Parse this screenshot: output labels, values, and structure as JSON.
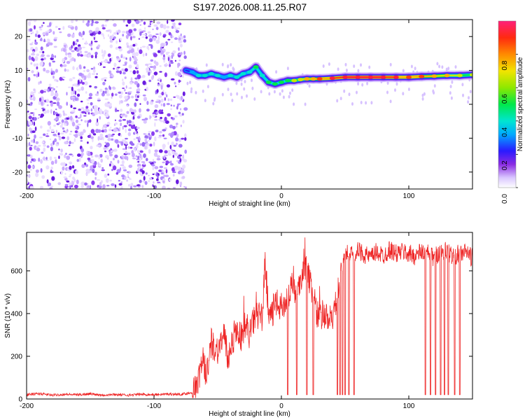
{
  "title": "S197.2026.008.11.25.R07",
  "colors": {
    "snr_line": "#ee2222",
    "background": "#ffffff",
    "noise_scatter": "#7a1fe0"
  },
  "chart_data": [
    {
      "type": "heatmap",
      "title": "S197.2026.008.11.25.R07",
      "xlabel": "Height of straight line (km)",
      "ylabel": "Frequency (Hz)",
      "xlim": [
        -200,
        150
      ],
      "ylim": [
        -25,
        25
      ],
      "xticks": [
        -200,
        -100,
        0,
        100
      ],
      "xtick_labels": [
        "-200",
        "-100",
        "0",
        "100"
      ],
      "yticks": [
        -20,
        -10,
        0,
        10,
        20
      ],
      "ytick_labels": [
        "-20",
        "-10",
        "0",
        "10",
        "20"
      ],
      "noise_region_x": [
        -200,
        -75
      ],
      "ridge": {
        "x": [
          -75,
          -70,
          -65,
          -60,
          -55,
          -50,
          -45,
          -40,
          -35,
          -30,
          -25,
          -20,
          -15,
          -10,
          -5,
          0,
          5,
          10,
          15,
          20,
          25,
          30,
          40,
          50,
          60,
          70,
          80,
          90,
          100,
          110,
          120,
          130,
          140,
          150
        ],
        "freq": [
          10,
          9.5,
          8.5,
          8.5,
          9.0,
          8.5,
          8.0,
          8.5,
          8.0,
          9.0,
          9.5,
          11.0,
          8.5,
          6.5,
          6.0,
          6.5,
          7.0,
          7.0,
          7.3,
          7.5,
          7.5,
          7.5,
          7.7,
          8.0,
          8.0,
          8.0,
          8.0,
          8.0,
          8.0,
          8.2,
          8.3,
          8.5,
          8.5,
          8.7
        ],
        "amplitude": [
          0.3,
          0.45,
          0.5,
          0.55,
          0.5,
          0.5,
          0.45,
          0.5,
          0.55,
          0.55,
          0.5,
          0.6,
          0.55,
          0.6,
          0.6,
          0.6,
          0.65,
          0.7,
          0.75,
          0.8,
          0.85,
          0.9,
          0.95,
          1.0,
          1.0,
          1.0,
          1.0,
          0.95,
          0.9,
          0.9,
          0.85,
          0.8,
          0.75,
          0.7
        ]
      },
      "colorbar": {
        "label": "Normalized spectral amplitude",
        "range": [
          0,
          1
        ],
        "ticks": [
          0.0,
          0.2,
          0.4,
          0.6,
          0.8
        ],
        "tick_labels": [
          "0.0",
          "0.2",
          "0.4",
          "0.6",
          "0.8"
        ]
      }
    },
    {
      "type": "line",
      "xlabel": "Height of straight line (km)",
      "ylabel": "SNR (10 * v/v)",
      "xlim": [
        -200,
        150
      ],
      "ylim": [
        0,
        780
      ],
      "xticks": [
        -200,
        -100,
        0,
        100
      ],
      "xtick_labels": [
        "-200",
        "-100",
        "0",
        "100"
      ],
      "yticks": [
        0,
        200,
        400,
        600
      ],
      "ytick_labels": [
        "0",
        "200",
        "400",
        "600"
      ],
      "series": [
        {
          "name": "SNR",
          "x": [
            -200,
            -190,
            -180,
            -170,
            -160,
            -150,
            -140,
            -130,
            -120,
            -110,
            -100,
            -90,
            -80,
            -75,
            -70,
            -65,
            -62,
            -60,
            -57,
            -55,
            -50,
            -45,
            -42,
            -40,
            -35,
            -30,
            -27,
            -25,
            -22,
            -20,
            -15,
            -13,
            -10,
            -7,
            -5,
            0,
            5,
            8,
            10,
            12,
            15,
            18,
            20,
            22,
            24,
            26,
            28,
            30,
            35,
            40,
            42,
            44,
            46,
            48,
            50,
            55,
            60,
            65,
            70,
            75,
            80,
            85,
            90,
            95,
            100,
            105,
            110,
            115,
            120,
            125,
            130,
            135,
            140,
            145,
            150
          ],
          "values": [
            20,
            25,
            18,
            22,
            20,
            24,
            19,
            21,
            18,
            22,
            20,
            23,
            22,
            25,
            30,
            80,
            200,
            120,
            160,
            260,
            230,
            300,
            180,
            250,
            320,
            280,
            340,
            300,
            360,
            400,
            380,
            640,
            420,
            390,
            450,
            430,
            470,
            520,
            500,
            540,
            560,
            590,
            610,
            560,
            500,
            440,
            400,
            380,
            380,
            380,
            420,
            480,
            560,
            650,
            700,
            680,
            690,
            680,
            660,
            690,
            670,
            700,
            680,
            690,
            680,
            670,
            690,
            680,
            660,
            700,
            690,
            670,
            680,
            690,
            660
          ],
          "dropouts_x": [
            5,
            12,
            20,
            25,
            44,
            46,
            48,
            50,
            53,
            57,
            113,
            117,
            121,
            125,
            128,
            131,
            136,
            140
          ]
        }
      ]
    }
  ]
}
